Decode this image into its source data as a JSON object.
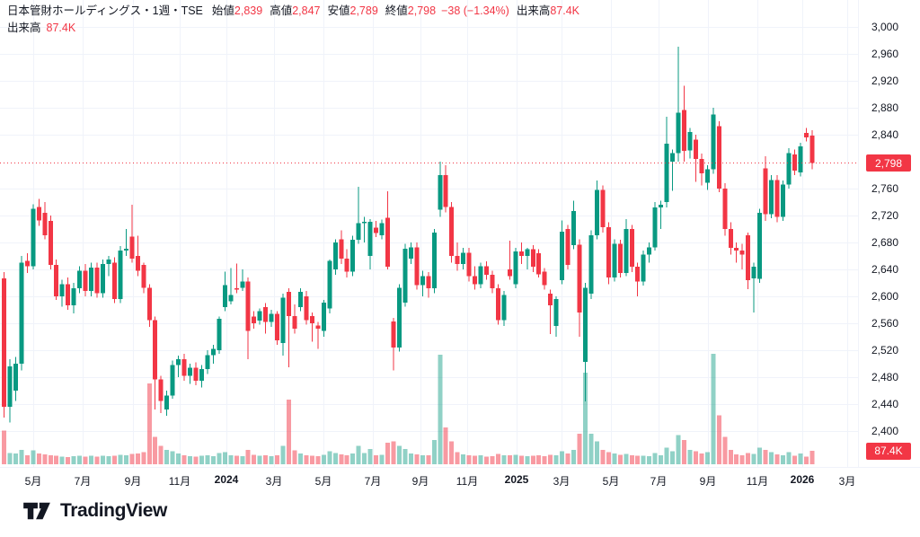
{
  "legend": {
    "title": "日本管財ホールディングス・1週・TSE",
    "open_label": "始値",
    "open": "2,839",
    "high_label": "高値",
    "high": "2,847",
    "low_label": "安値",
    "low": "2,789",
    "close_label": "終値",
    "close": "2,798",
    "change": "−38 (−1.34%)",
    "volume_label": "出来高",
    "volume": "87.4K",
    "row2_label": "出来高",
    "row2_value": "87.4K"
  },
  "price_axis": {
    "ticks": [
      {
        "label": "3,000",
        "price": 3000
      },
      {
        "label": "2,960",
        "price": 2960
      },
      {
        "label": "2,920",
        "price": 2920
      },
      {
        "label": "2,880",
        "price": 2880
      },
      {
        "label": "2,840",
        "price": 2840
      },
      {
        "label": "2,760",
        "price": 2760
      },
      {
        "label": "2,720",
        "price": 2720
      },
      {
        "label": "2,680",
        "price": 2680
      },
      {
        "label": "2,640",
        "price": 2640
      },
      {
        "label": "2,600",
        "price": 2600
      },
      {
        "label": "2,560",
        "price": 2560
      },
      {
        "label": "2,520",
        "price": 2520
      },
      {
        "label": "2,480",
        "price": 2480
      },
      {
        "label": "2,440",
        "price": 2440
      },
      {
        "label": "2,400",
        "price": 2400
      }
    ],
    "last_price_badge": {
      "label": "2,798",
      "price": 2798
    },
    "volume_badge": {
      "label": "87.4K"
    }
  },
  "time_axis": {
    "labels": [
      {
        "text": "5月",
        "x": 37,
        "bold": false
      },
      {
        "text": "7月",
        "x": 92,
        "bold": false
      },
      {
        "text": "9月",
        "x": 148,
        "bold": false
      },
      {
        "text": "11月",
        "x": 200,
        "bold": false
      },
      {
        "text": "2024",
        "x": 252,
        "bold": true
      },
      {
        "text": "3月",
        "x": 305,
        "bold": false
      },
      {
        "text": "5月",
        "x": 360,
        "bold": false
      },
      {
        "text": "7月",
        "x": 415,
        "bold": false
      },
      {
        "text": "9月",
        "x": 468,
        "bold": false
      },
      {
        "text": "11月",
        "x": 520,
        "bold": false
      },
      {
        "text": "2025",
        "x": 575,
        "bold": true
      },
      {
        "text": "3月",
        "x": 625,
        "bold": false
      },
      {
        "text": "5月",
        "x": 680,
        "bold": false
      },
      {
        "text": "7月",
        "x": 733,
        "bold": false
      },
      {
        "text": "9月",
        "x": 788,
        "bold": false
      },
      {
        "text": "11月",
        "x": 843,
        "bold": false
      },
      {
        "text": "2026",
        "x": 893,
        "bold": true
      },
      {
        "text": "3月",
        "x": 943,
        "bold": false
      }
    ]
  },
  "footer": {
    "brand": "TradingView"
  },
  "colors": {
    "up": "#089981",
    "down": "#F23645",
    "vol_up": "rgba(8,153,129,0.45)",
    "vol_down": "rgba(242,54,69,0.5)",
    "grid": "#f0f3fa",
    "text": "#131722",
    "badge_bg": "#F23645"
  },
  "chart_data": {
    "type": "candlestick",
    "title": "日本管財ホールディングス・1週・TSE",
    "symbol": "日本管財ホールディングス",
    "interval": "1週",
    "exchange": "TSE",
    "last_bar": {
      "open": 2839,
      "high": 2847,
      "low": 2789,
      "close": 2798,
      "change": "−38 (−1.34%)",
      "volume": "87.4K"
    },
    "ylim": [
      2380,
      3010
    ],
    "volume_unit": "K",
    "note": "weekly candles Apr 2023 - Jan 2026, values [open,high,low,close,volumeK]",
    "candles": [
      [
        2627,
        2636,
        2420,
        2436,
        220
      ],
      [
        2436,
        2507,
        2413,
        2496,
        75
      ],
      [
        2460,
        2510,
        2445,
        2500,
        70
      ],
      [
        2500,
        2660,
        2490,
        2650,
        95
      ],
      [
        2653,
        2664,
        2635,
        2645,
        60
      ],
      [
        2645,
        2737,
        2640,
        2730,
        90
      ],
      [
        2733,
        2745,
        2705,
        2713,
        70
      ],
      [
        2724,
        2740,
        2685,
        2691,
        65
      ],
      [
        2712,
        2720,
        2640,
        2647,
        60
      ],
      [
        2647,
        2655,
        2595,
        2600,
        55
      ],
      [
        2600,
        2625,
        2585,
        2618,
        50
      ],
      [
        2618,
        2628,
        2580,
        2587,
        48
      ],
      [
        2587,
        2620,
        2575,
        2612,
        52
      ],
      [
        2612,
        2645,
        2605,
        2638,
        56
      ],
      [
        2638,
        2648,
        2600,
        2608,
        50
      ],
      [
        2608,
        2650,
        2600,
        2643,
        55
      ],
      [
        2643,
        2650,
        2598,
        2605,
        50
      ],
      [
        2605,
        2655,
        2598,
        2648,
        57
      ],
      [
        2648,
        2660,
        2630,
        2655,
        52
      ],
      [
        2650,
        2658,
        2590,
        2596,
        55
      ],
      [
        2596,
        2675,
        2590,
        2668,
        62
      ],
      [
        2668,
        2700,
        2660,
        2671,
        60
      ],
      [
        2689,
        2736,
        2650,
        2656,
        68
      ],
      [
        2660,
        2690,
        2630,
        2638,
        72
      ],
      [
        2647,
        2650,
        2605,
        2613,
        78
      ],
      [
        2613,
        2618,
        2555,
        2565,
        530
      ],
      [
        2565,
        2570,
        2432,
        2477,
        180
      ],
      [
        2477,
        2482,
        2427,
        2445,
        120
      ],
      [
        2432,
        2460,
        2423,
        2453,
        95
      ],
      [
        2453,
        2505,
        2448,
        2498,
        85
      ],
      [
        2498,
        2512,
        2480,
        2507,
        70
      ],
      [
        2507,
        2515,
        2475,
        2482,
        60
      ],
      [
        2482,
        2500,
        2470,
        2494,
        52
      ],
      [
        2494,
        2502,
        2468,
        2475,
        50
      ],
      [
        2475,
        2498,
        2465,
        2492,
        55
      ],
      [
        2492,
        2520,
        2485,
        2513,
        58
      ],
      [
        2513,
        2528,
        2500,
        2522,
        52
      ],
      [
        2520,
        2570,
        2515,
        2567,
        75
      ],
      [
        2584,
        2637,
        2578,
        2617,
        80
      ],
      [
        2593,
        2642,
        2588,
        2602,
        60
      ],
      [
        2612,
        2649,
        2605,
        2610,
        56
      ],
      [
        2613,
        2640,
        2608,
        2622,
        52
      ],
      [
        2622,
        2628,
        2507,
        2549,
        95
      ],
      [
        2570,
        2578,
        2552,
        2560,
        62
      ],
      [
        2564,
        2582,
        2558,
        2578,
        55
      ],
      [
        2584,
        2590,
        2545,
        2562,
        58
      ],
      [
        2562,
        2580,
        2555,
        2574,
        52
      ],
      [
        2574,
        2578,
        2528,
        2535,
        60
      ],
      [
        2531,
        2604,
        2512,
        2598,
        120
      ],
      [
        2607,
        2612,
        2495,
        2571,
        425
      ],
      [
        2571,
        2588,
        2545,
        2552,
        90
      ],
      [
        2584,
        2612,
        2578,
        2607,
        70
      ],
      [
        2600,
        2608,
        2558,
        2565,
        60
      ],
      [
        2571,
        2576,
        2533,
        2560,
        56
      ],
      [
        2557,
        2562,
        2522,
        2552,
        52
      ],
      [
        2549,
        2595,
        2540,
        2591,
        62
      ],
      [
        2582,
        2655,
        2575,
        2653,
        85
      ],
      [
        2640,
        2685,
        2632,
        2680,
        75
      ],
      [
        2685,
        2698,
        2648,
        2656,
        65
      ],
      [
        2656,
        2670,
        2628,
        2637,
        58
      ],
      [
        2637,
        2690,
        2630,
        2684,
        70
      ],
      [
        2684,
        2763,
        2678,
        2709,
        120
      ],
      [
        2709,
        2718,
        2680,
        2711,
        75
      ],
      [
        2660,
        2715,
        2640,
        2711,
        100
      ],
      [
        2702,
        2712,
        2688,
        2694,
        60
      ],
      [
        2691,
        2714,
        2685,
        2709,
        62
      ],
      [
        2717,
        2756,
        2640,
        2644,
        140
      ],
      [
        2563,
        2568,
        2490,
        2524,
        150
      ],
      [
        2524,
        2618,
        2518,
        2613,
        120
      ],
      [
        2591,
        2678,
        2585,
        2671,
        100
      ],
      [
        2656,
        2680,
        2648,
        2673,
        70
      ],
      [
        2673,
        2680,
        2610,
        2617,
        65
      ],
      [
        2617,
        2638,
        2600,
        2630,
        58
      ],
      [
        2630,
        2636,
        2598,
        2612,
        60
      ],
      [
        2612,
        2700,
        2605,
        2695,
        160
      ],
      [
        2729,
        2800,
        2718,
        2780,
        717
      ],
      [
        2780,
        2795,
        2725,
        2733,
        240
      ],
      [
        2733,
        2740,
        2650,
        2660,
        150
      ],
      [
        2660,
        2680,
        2638,
        2648,
        80
      ],
      [
        2648,
        2672,
        2640,
        2665,
        65
      ],
      [
        2665,
        2672,
        2622,
        2630,
        60
      ],
      [
        2630,
        2645,
        2610,
        2618,
        55
      ],
      [
        2618,
        2650,
        2612,
        2645,
        58
      ],
      [
        2645,
        2652,
        2625,
        2632,
        50
      ],
      [
        2632,
        2638,
        2605,
        2612,
        52
      ],
      [
        2612,
        2618,
        2558,
        2565,
        68
      ],
      [
        2565,
        2608,
        2556,
        2602,
        60
      ],
      [
        2640,
        2683,
        2625,
        2630,
        58
      ],
      [
        2618,
        2672,
        2612,
        2667,
        62
      ],
      [
        2667,
        2680,
        2648,
        2660,
        55
      ],
      [
        2660,
        2672,
        2640,
        2670,
        52
      ],
      [
        2670,
        2676,
        2636,
        2644,
        56
      ],
      [
        2664,
        2670,
        2628,
        2633,
        58
      ],
      [
        2637,
        2642,
        2610,
        2617,
        54
      ],
      [
        2604,
        2610,
        2544,
        2587,
        62
      ],
      [
        2556,
        2600,
        2540,
        2596,
        58
      ],
      [
        2624,
        2713,
        2618,
        2696,
        85
      ],
      [
        2700,
        2706,
        2640,
        2647,
        70
      ],
      [
        2676,
        2742,
        2670,
        2727,
        95
      ],
      [
        2677,
        2685,
        2540,
        2576,
        200
      ],
      [
        2503,
        2620,
        2444,
        2613,
        600
      ],
      [
        2604,
        2698,
        2596,
        2691,
        200
      ],
      [
        2691,
        2772,
        2685,
        2758,
        150
      ],
      [
        2758,
        2765,
        2695,
        2703,
        95
      ],
      [
        2703,
        2710,
        2618,
        2628,
        80
      ],
      [
        2628,
        2685,
        2622,
        2678,
        70
      ],
      [
        2678,
        2684,
        2628,
        2635,
        62
      ],
      [
        2635,
        2715,
        2630,
        2700,
        68
      ],
      [
        2700,
        2706,
        2636,
        2644,
        60
      ],
      [
        2644,
        2650,
        2600,
        2622,
        56
      ],
      [
        2622,
        2668,
        2616,
        2662,
        55
      ],
      [
        2662,
        2680,
        2650,
        2673,
        52
      ],
      [
        2673,
        2740,
        2668,
        2732,
        75
      ],
      [
        2732,
        2742,
        2700,
        2736,
        60
      ],
      [
        2740,
        2867,
        2732,
        2827,
        110
      ],
      [
        2800,
        2818,
        2757,
        2813,
        85
      ],
      [
        2813,
        2971,
        2800,
        2873,
        190
      ],
      [
        2877,
        2913,
        2800,
        2816,
        160
      ],
      [
        2817,
        2850,
        2805,
        2844,
        95
      ],
      [
        2833,
        2840,
        2770,
        2804,
        85
      ],
      [
        2804,
        2812,
        2765,
        2783,
        70
      ],
      [
        2769,
        2795,
        2758,
        2789,
        80
      ],
      [
        2789,
        2880,
        2782,
        2870,
        723
      ],
      [
        2853,
        2860,
        2755,
        2760,
        320
      ],
      [
        2760,
        2768,
        2690,
        2700,
        180
      ],
      [
        2700,
        2710,
        2662,
        2672,
        95
      ],
      [
        2672,
        2680,
        2650,
        2668,
        65
      ],
      [
        2668,
        2678,
        2640,
        2662,
        60
      ],
      [
        2691,
        2695,
        2611,
        2624,
        75
      ],
      [
        2627,
        2650,
        2576,
        2644,
        68
      ],
      [
        2626,
        2730,
        2620,
        2724,
        110
      ],
      [
        2790,
        2808,
        2712,
        2722,
        95
      ],
      [
        2722,
        2780,
        2716,
        2773,
        80
      ],
      [
        2773,
        2780,
        2710,
        2718,
        65
      ],
      [
        2718,
        2772,
        2712,
        2766,
        60
      ],
      [
        2766,
        2820,
        2760,
        2813,
        80
      ],
      [
        2811,
        2818,
        2780,
        2787,
        55
      ],
      [
        2784,
        2828,
        2778,
        2823,
        70
      ],
      [
        2843,
        2850,
        2830,
        2836,
        50
      ],
      [
        2839,
        2847,
        2789,
        2798,
        87.4
      ]
    ]
  }
}
